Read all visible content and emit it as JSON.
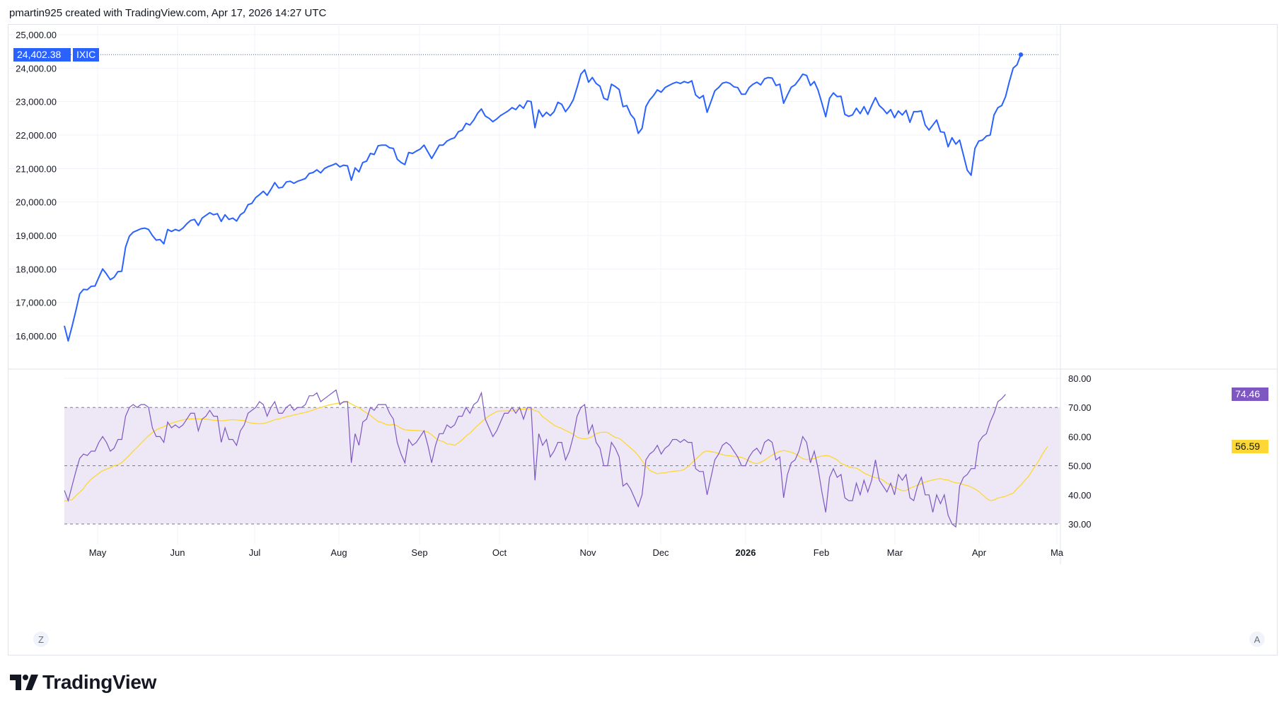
{
  "header": {
    "text": "pmartin925 created with TradingView.com, Apr 17, 2026 14:27 UTC"
  },
  "brand": {
    "name": "TradingView"
  },
  "controls": {
    "left_button": "Z",
    "right_button": "A"
  },
  "colors": {
    "price_line": "#2962ff",
    "rsi_line": "#7e57c2",
    "rsi_ma_line": "#fdd835",
    "rsi_band_fill": "#ede7f6",
    "grid": "#f0f3fa",
    "axis_text": "#131722"
  },
  "chart_data": [
    {
      "type": "line",
      "symbol": "IXIC",
      "title": "",
      "last_value_label": "24,402.38",
      "ylim": [
        15000,
        25500
      ],
      "y_ticks": [
        "16,000.00",
        "17,000.00",
        "18,000.00",
        "19,000.00",
        "20,000.00",
        "21,000.00",
        "22,000.00",
        "23,000.00",
        "24,000.00",
        "25,000.00"
      ],
      "x_ticks": [
        "May",
        "Jun",
        "Jul",
        "Aug",
        "Sep",
        "Oct",
        "Nov",
        "Dec",
        "2026",
        "Feb",
        "Mar",
        "Apr",
        "Ma"
      ],
      "grid": true,
      "series": [
        {
          "values": [
            16300,
            15850,
            16280,
            16750,
            17250,
            17390,
            17380,
            17480,
            17490,
            17750,
            18000,
            17850,
            17680,
            17750,
            17920,
            17930,
            18650,
            18980,
            19100,
            19150,
            19200,
            19220,
            19180,
            19000,
            18860,
            18880,
            18750,
            19180,
            19120,
            19180,
            19140,
            19220,
            19350,
            19450,
            19480,
            19300,
            19520,
            19600,
            19680,
            19620,
            19650,
            19420,
            19620,
            19480,
            19520,
            19430,
            19620,
            19700,
            19920,
            19960,
            20130,
            20220,
            20320,
            20200,
            20380,
            20580,
            20420,
            20440,
            20600,
            20620,
            20560,
            20620,
            20660,
            20700,
            20850,
            20880,
            20960,
            20870,
            21000,
            21060,
            21100,
            21150,
            21050,
            21100,
            21080,
            20650,
            21020,
            20900,
            21180,
            21220,
            21450,
            21420,
            21680,
            21700,
            21700,
            21620,
            21600,
            21280,
            21180,
            21120,
            21480,
            21450,
            21520,
            21580,
            21700,
            21500,
            21300,
            21500,
            21700,
            21700,
            21820,
            21880,
            21920,
            22100,
            22150,
            22350,
            22300,
            22450,
            22650,
            22780,
            22570,
            22500,
            22400,
            22480,
            22580,
            22650,
            22720,
            22820,
            22760,
            22900,
            22800,
            23020,
            23000,
            22220,
            22750,
            22550,
            22680,
            22580,
            22700,
            22980,
            22920,
            22700,
            22850,
            23050,
            23420,
            23820,
            23950,
            23580,
            23720,
            23540,
            23460,
            23100,
            23050,
            23520,
            23450,
            23360,
            22850,
            22880,
            22620,
            22480,
            22050,
            22200,
            22850,
            23050,
            23180,
            23350,
            23280,
            23420,
            23480,
            23540,
            23580,
            23540,
            23600,
            23560,
            23620,
            23200,
            23100,
            23180,
            22680,
            23000,
            23320,
            23420,
            23550,
            23580,
            23540,
            23440,
            23420,
            23220,
            23220,
            23420,
            23520,
            23580,
            23500,
            23680,
            23720,
            23700,
            23480,
            23520,
            22950,
            23200,
            23430,
            23500,
            23650,
            23820,
            23780,
            23480,
            23600,
            23340,
            22950,
            22550,
            23100,
            23260,
            23150,
            23160,
            22620,
            22560,
            22600,
            22800,
            22640,
            22850,
            22620,
            22880,
            23120,
            22880,
            22780,
            22640,
            22760,
            22520,
            22720,
            22600,
            22740,
            22380,
            22700,
            22700,
            22720,
            22300,
            22150,
            22300,
            22450,
            22100,
            22080,
            21650,
            21920,
            21730,
            21850,
            21400,
            20950,
            20800,
            21600,
            21820,
            21850,
            21970,
            22000,
            22600,
            22820,
            22880,
            23150,
            23600,
            24000,
            24100,
            24402.38
          ]
        }
      ]
    },
    {
      "type": "line",
      "title": "",
      "last_value_label": "74.46",
      "ma_value_label": "56.59",
      "ylim": [
        28,
        82
      ],
      "bands": [
        30,
        50,
        70
      ],
      "y_ticks": [
        "30.00",
        "40.00",
        "50.00",
        "60.00",
        "70.00",
        "80.00"
      ],
      "series": [
        {
          "name": "",
          "values": [
            41.5,
            38,
            43,
            48,
            52.5,
            54,
            53.5,
            55,
            55,
            58,
            60,
            58,
            55,
            56,
            59,
            59,
            67,
            70,
            71,
            70,
            71,
            71,
            70,
            63,
            60,
            60,
            58,
            65,
            63,
            64,
            63,
            64,
            66,
            68,
            68,
            62,
            66,
            67,
            69,
            67,
            67,
            58,
            63,
            59,
            59,
            57,
            62,
            64,
            68,
            69,
            70,
            72,
            71,
            67,
            70,
            72,
            68,
            68,
            70,
            71,
            69,
            70,
            70,
            71,
            74,
            74,
            75,
            72,
            73,
            74,
            75,
            76,
            71,
            72,
            72,
            51,
            61,
            57,
            65,
            66,
            70,
            69,
            71,
            71,
            71,
            68,
            66,
            58,
            54,
            51,
            59,
            57,
            58,
            60,
            62,
            57,
            51,
            57,
            61,
            61,
            64,
            63,
            64,
            67,
            67,
            70,
            68,
            71,
            72,
            75,
            66,
            63,
            60,
            62,
            65,
            68,
            68,
            70,
            68,
            70,
            66,
            70,
            70,
            45,
            61,
            57,
            59,
            53,
            55,
            58,
            58,
            52,
            55,
            60,
            67,
            70,
            71,
            61,
            64,
            58,
            56,
            50,
            50,
            58,
            56,
            53,
            43,
            44,
            42,
            39,
            36,
            40,
            52,
            54,
            55,
            57,
            54,
            56,
            57,
            59,
            59,
            58,
            59,
            58,
            58,
            49,
            48,
            48,
            40,
            46,
            52,
            54,
            57,
            58,
            57,
            55,
            53,
            50,
            50,
            53,
            55,
            56,
            54,
            58,
            59,
            58,
            52,
            53,
            39,
            47,
            51,
            52,
            55,
            60,
            58,
            51,
            55,
            49,
            41,
            34,
            46,
            49,
            46,
            47,
            39,
            38,
            38,
            44,
            40,
            45,
            41,
            45,
            52,
            45,
            43,
            41,
            44,
            40,
            47,
            45,
            47,
            39,
            38,
            43,
            46,
            40,
            40,
            34,
            40,
            37,
            40,
            33,
            30,
            29,
            43,
            46,
            47,
            49,
            49,
            58,
            60,
            61,
            65,
            68,
            72,
            73,
            74.46
          ]
        },
        {
          "name": "",
          "values": [
            37.9,
            38.1,
            38.3,
            39.7,
            40.9,
            42.2,
            44,
            45.4,
            46.4,
            47.4,
            48.3,
            48.8,
            49.3,
            50,
            50.3,
            51.1,
            52.3,
            53.6,
            55,
            56.3,
            57.7,
            59,
            60.3,
            61.4,
            62.3,
            62.9,
            63.4,
            64,
            64.6,
            65,
            65.4,
            65.7,
            66,
            66.1,
            66.1,
            66.1,
            66,
            66,
            65.8,
            65.6,
            65.5,
            65.4,
            65.5,
            65.7,
            65.8,
            65.7,
            65.6,
            65.5,
            64.9,
            64.6,
            64.5,
            64.4,
            64.5,
            64.8,
            65.3,
            65.8,
            66,
            66.4,
            66.8,
            67.1,
            67.4,
            67.7,
            68,
            68.3,
            68.7,
            69.1,
            69.6,
            70,
            70.4,
            70.8,
            71.1,
            71.3,
            71.6,
            71.7,
            72,
            71.2,
            70.5,
            69.9,
            69,
            68.1,
            67.3,
            66.2,
            65.2,
            64.8,
            64.2,
            63.9,
            64.2,
            63.7,
            62.9,
            62.3,
            62.2,
            62.1,
            62.1,
            62,
            61.9,
            61.6,
            60.6,
            59.5,
            58.6,
            58.3,
            57.5,
            57.4,
            57,
            57.9,
            58.9,
            60.2,
            61.2,
            62.5,
            63.8,
            65,
            66.1,
            67.1,
            67.9,
            68.6,
            68.8,
            68.8,
            68.8,
            68.8,
            69.1,
            69.4,
            69.4,
            69.5,
            69.6,
            68.9,
            68.5,
            66.8,
            65.9,
            64.9,
            63.9,
            63.3,
            62.8,
            62.1,
            61.5,
            60.8,
            59.8,
            59.4,
            59.2,
            59.5,
            60,
            61,
            61.4,
            61.5,
            61.4,
            60.5,
            59.7,
            59.4,
            58.4,
            57.2,
            56.1,
            54.9,
            53.5,
            51.7,
            49.9,
            48.4,
            47.8,
            47.2,
            47.5,
            47.5,
            47.9,
            48,
            48.2,
            48.3,
            48.7,
            49.7,
            51,
            52.2,
            53.4,
            54.6,
            55.1,
            54.8,
            54.6,
            54.2,
            53.8,
            53.5,
            53.4,
            53.2,
            53,
            52.9,
            52.3,
            51.6,
            51,
            50.7,
            51.2,
            51.9,
            52.8,
            53.7,
            54.4,
            54.9,
            55.2,
            55,
            54.6,
            54.1,
            53.3,
            52.4,
            52.1,
            52.3,
            52.4,
            53,
            53.3,
            53.5,
            53.3,
            52.7,
            52,
            50.8,
            50.3,
            49.6,
            49.3,
            49.2,
            48.4,
            47.5,
            46.9,
            46.3,
            45.9,
            45.7,
            45,
            44,
            43.4,
            42.6,
            42,
            41.4,
            41.5,
            42.3,
            42.8,
            43.3,
            43.8,
            44.4,
            44.8,
            45.1,
            45.4,
            45.6,
            45.2,
            45.1,
            44.5,
            44.1,
            44,
            43.5,
            43.2,
            42.7,
            42,
            41.2,
            40,
            38.8,
            38,
            38.2,
            38.9,
            39.2,
            39.5,
            40.1,
            40.6,
            42.1,
            43.4,
            44.9,
            46.3,
            48.4,
            50.3,
            52.4,
            54.7,
            56.59
          ]
        }
      ]
    }
  ]
}
